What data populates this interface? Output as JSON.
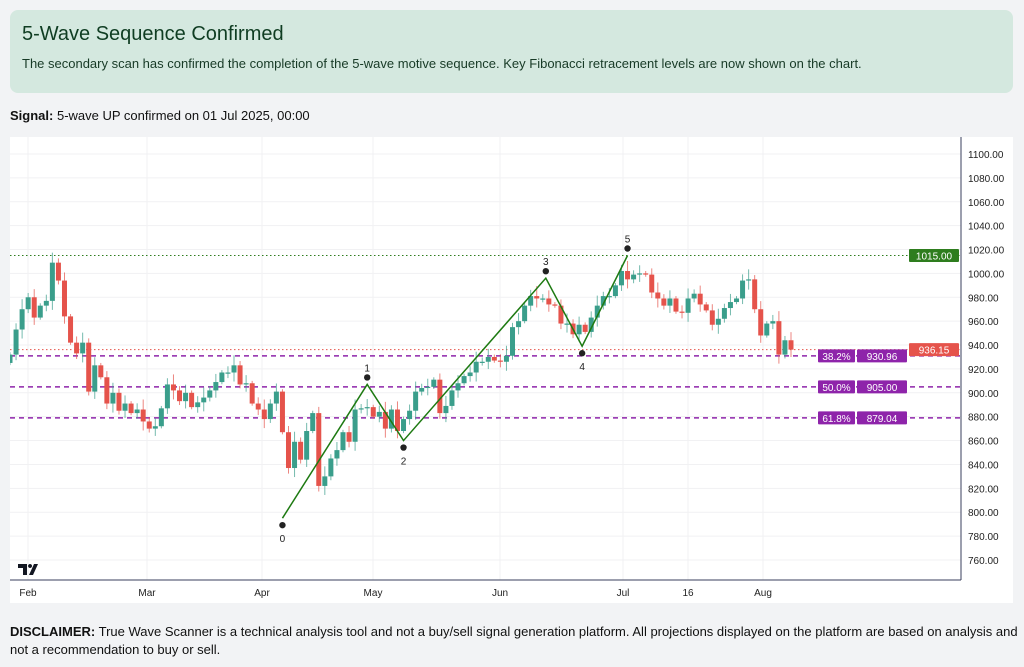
{
  "alert": {
    "title": "5-Wave Sequence Confirmed",
    "message": "The secondary scan has confirmed the completion of the 5-wave motive sequence. Key Fibonacci retracement levels are now shown on the chart."
  },
  "signal": {
    "label": "Signal:",
    "text": "5-wave UP confirmed on 01 Jul 2025, 00:00"
  },
  "disclaimer": {
    "label": "DISCLAIMER:",
    "text": "True Wave Scanner is a technical analysis tool and not a buy/sell signal generation platform. All projections displayed on the platform are based on analysis and not a recommendation to buy or sell."
  },
  "colors": {
    "up": "#3a9e8b",
    "down": "#e5534b",
    "wave": "#1e7a12",
    "fib": "#8e24aa",
    "target": "#2e7d1e",
    "last": "#e5534b"
  },
  "chart_data": {
    "type": "candlestick",
    "ylim": [
      750,
      1110
    ],
    "y_ticks": [
      760,
      780,
      800,
      820,
      840,
      860,
      880,
      900,
      920,
      940,
      960,
      980,
      1000,
      1020,
      1040,
      1060,
      1080,
      1100
    ],
    "x_tick_labels": [
      "Feb",
      "Mar",
      "Apr",
      "May",
      "Jun",
      "Jul",
      "16",
      "Aug"
    ],
    "grid": true,
    "closes": [
      932,
      953,
      970,
      980,
      963,
      973,
      977,
      1009,
      994,
      964,
      942,
      933,
      942,
      901,
      923,
      913,
      891,
      900,
      885,
      891,
      883,
      886,
      876,
      870,
      872,
      887,
      907,
      902,
      893,
      900,
      888,
      892,
      896,
      902,
      909,
      917,
      917,
      923,
      907,
      908,
      891,
      886,
      878,
      891,
      901,
      867,
      837,
      859,
      844,
      868,
      883,
      822,
      830,
      845,
      852,
      867,
      859,
      886,
      887,
      888,
      880,
      884,
      870,
      886,
      868,
      878,
      885,
      901,
      904,
      905,
      911,
      883,
      889,
      902,
      908,
      914,
      917,
      926,
      926,
      930,
      927,
      926,
      931,
      955,
      960,
      973,
      981,
      979,
      979,
      974,
      973,
      958,
      958,
      949,
      957,
      951,
      963,
      973,
      981,
      981,
      990,
      1002,
      995,
      999,
      1000,
      999,
      984,
      979,
      973,
      979,
      968,
      967,
      979,
      983,
      974,
      969,
      957,
      962,
      971,
      976,
      979,
      994,
      995,
      970,
      948,
      958,
      960,
      932,
      944,
      936.15
    ],
    "waves": [
      {
        "label": "0",
        "candle_index": 45,
        "price": 795
      },
      {
        "label": "1",
        "candle_index": 59,
        "price": 907
      },
      {
        "label": "2",
        "candle_index": 65,
        "price": 860
      },
      {
        "label": "3",
        "candle_index": 88.5,
        "price": 996
      },
      {
        "label": "4",
        "candle_index": 94.5,
        "price": 939
      },
      {
        "label": "5",
        "candle_index": 102,
        "price": 1015
      }
    ],
    "levels": [
      {
        "name": "target",
        "price_label": "1015.00",
        "value": 1015,
        "style": "dotted",
        "color": "#2e7d1e"
      },
      {
        "name": "last-price",
        "price_label": "936.15",
        "value": 936.15,
        "style": "dotted",
        "color": "#e5534b"
      },
      {
        "name": "fib-38",
        "fib_label": "38.2%",
        "price_label": "930.96",
        "value": 930.96,
        "style": "dashed",
        "color": "#8e24aa"
      },
      {
        "name": "fib-50",
        "fib_label": "50.0%",
        "price_label": "905.00",
        "value": 905,
        "style": "dashed",
        "color": "#8e24aa"
      },
      {
        "name": "fib-62",
        "fib_label": "61.8%",
        "price_label": "879.04",
        "value": 879.04,
        "style": "dashed",
        "color": "#8e24aa"
      }
    ]
  }
}
